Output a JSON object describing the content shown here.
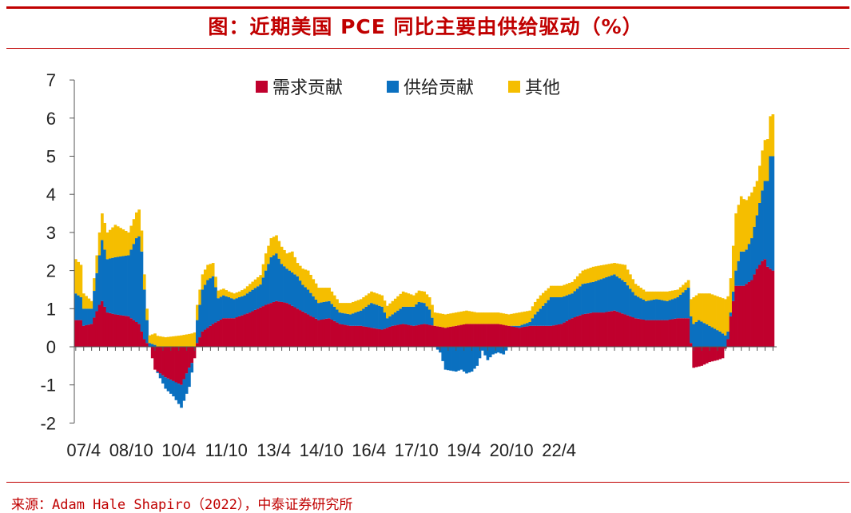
{
  "title": "图：近期美国 PCE 同比主要由供给驱动（%）",
  "source": "来源：Adam Hale Shapiro（2022），中泰证券研究所",
  "colors": {
    "demand": "#C0002D",
    "supply": "#0A70C0",
    "other": "#F5BE00",
    "accent": "#C00000"
  },
  "chart_data": {
    "type": "bar",
    "stacked": true,
    "title": "图：近期美国 PCE 同比主要由供给驱动（%）",
    "xlabel": "",
    "ylabel": "",
    "ylim": [
      -2,
      7
    ],
    "yticks": [
      -2,
      -1,
      0,
      1,
      2,
      3,
      4,
      5,
      6,
      7
    ],
    "xtick_labels": [
      "07/4",
      "08/10",
      "10/4",
      "11/10",
      "13/4",
      "14/10",
      "16/4",
      "17/10",
      "19/4",
      "20/10",
      "22/4"
    ],
    "grid": false,
    "legend": {
      "position": "top",
      "entries": [
        "需求贡献",
        "供给贡献",
        "其他"
      ]
    },
    "x_start": "2007-01",
    "frequency": "monthly",
    "anchors": {
      "demand": [
        [
          0,
          0.7
        ],
        [
          2,
          0.7
        ],
        [
          3,
          0.55
        ],
        [
          6,
          0.6
        ],
        [
          9,
          1.1
        ],
        [
          10,
          1.2
        ],
        [
          12,
          0.9
        ],
        [
          15,
          0.85
        ],
        [
          20,
          0.8
        ],
        [
          24,
          0.6
        ],
        [
          26,
          0.2
        ],
        [
          28,
          0.0
        ],
        [
          30,
          -0.6
        ],
        [
          34,
          -0.8
        ],
        [
          37,
          -0.9
        ],
        [
          40,
          -1.0
        ],
        [
          43,
          -0.55
        ],
        [
          45,
          -0.3
        ],
        [
          46,
          0.1
        ],
        [
          48,
          0.4
        ],
        [
          52,
          0.6
        ],
        [
          56,
          0.75
        ],
        [
          60,
          0.75
        ],
        [
          66,
          0.9
        ],
        [
          72,
          1.1
        ],
        [
          76,
          1.2
        ],
        [
          80,
          1.15
        ],
        [
          84,
          1.0
        ],
        [
          88,
          0.85
        ],
        [
          92,
          0.7
        ],
        [
          96,
          0.75
        ],
        [
          100,
          0.6
        ],
        [
          104,
          0.55
        ],
        [
          108,
          0.55
        ],
        [
          112,
          0.5
        ],
        [
          116,
          0.45
        ],
        [
          120,
          0.55
        ],
        [
          124,
          0.6
        ],
        [
          128,
          0.55
        ],
        [
          132,
          0.6
        ],
        [
          136,
          0.55
        ],
        [
          140,
          0.5
        ],
        [
          144,
          0.55
        ],
        [
          148,
          0.6
        ],
        [
          152,
          0.6
        ],
        [
          156,
          0.6
        ],
        [
          160,
          0.6
        ],
        [
          164,
          0.55
        ],
        [
          168,
          0.5
        ],
        [
          172,
          0.55
        ],
        [
          176,
          0.55
        ],
        [
          180,
          0.55
        ],
        [
          184,
          0.6
        ],
        [
          188,
          0.75
        ],
        [
          192,
          0.85
        ],
        [
          196,
          0.9
        ],
        [
          200,
          0.9
        ],
        [
          204,
          0.95
        ],
        [
          208,
          0.85
        ],
        [
          212,
          0.75
        ],
        [
          216,
          0.7
        ],
        [
          220,
          0.7
        ],
        [
          224,
          0.7
        ],
        [
          228,
          0.75
        ],
        [
          230,
          0.75
        ],
        [
          232,
          0.75
        ],
        [
          234,
          -0.55
        ],
        [
          237,
          -0.5
        ],
        [
          240,
          -0.4
        ],
        [
          243,
          -0.35
        ],
        [
          245,
          -0.3
        ],
        [
          247,
          0.2
        ],
        [
          248,
          0.8
        ],
        [
          250,
          1.6
        ],
        [
          253,
          1.6
        ],
        [
          256,
          1.75
        ],
        [
          258,
          2.05
        ],
        [
          260,
          2.25
        ],
        [
          261,
          2.3
        ],
        [
          262,
          2.1
        ],
        [
          264,
          2.0
        ]
      ],
      "supply": [
        [
          0,
          0.7
        ],
        [
          2,
          0.6
        ],
        [
          3,
          0.45
        ],
        [
          6,
          0.4
        ],
        [
          9,
          1.3
        ],
        [
          10,
          1.6
        ],
        [
          12,
          1.4
        ],
        [
          15,
          1.5
        ],
        [
          20,
          1.6
        ],
        [
          23,
          2.2
        ],
        [
          24,
          2.3
        ],
        [
          25,
          2.1
        ],
        [
          26,
          1.3
        ],
        [
          27,
          0.6
        ],
        [
          28,
          0.1
        ],
        [
          30,
          0.05
        ],
        [
          34,
          -0.3
        ],
        [
          37,
          -0.4
        ],
        [
          40,
          -0.6
        ],
        [
          43,
          -0.5
        ],
        [
          45,
          0.0
        ],
        [
          46,
          0.6
        ],
        [
          48,
          1.1
        ],
        [
          50,
          1.25
        ],
        [
          52,
          1.25
        ],
        [
          54,
          0.6
        ],
        [
          56,
          0.6
        ],
        [
          60,
          0.5
        ],
        [
          64,
          0.5
        ],
        [
          66,
          0.55
        ],
        [
          70,
          0.6
        ],
        [
          74,
          1.2
        ],
        [
          76,
          1.25
        ],
        [
          78,
          1.0
        ],
        [
          80,
          0.9
        ],
        [
          84,
          0.85
        ],
        [
          86,
          0.7
        ],
        [
          88,
          0.65
        ],
        [
          92,
          0.45
        ],
        [
          96,
          0.45
        ],
        [
          100,
          0.3
        ],
        [
          104,
          0.3
        ],
        [
          108,
          0.4
        ],
        [
          112,
          0.65
        ],
        [
          116,
          0.6
        ],
        [
          118,
          0.25
        ],
        [
          120,
          0.3
        ],
        [
          124,
          0.45
        ],
        [
          128,
          0.5
        ],
        [
          130,
          0.6
        ],
        [
          132,
          0.55
        ],
        [
          134,
          0.4
        ],
        [
          136,
          0.0
        ],
        [
          138,
          -0.15
        ],
        [
          140,
          -0.6
        ],
        [
          144,
          -0.65
        ],
        [
          146,
          -0.6
        ],
        [
          148,
          -0.7
        ],
        [
          150,
          -0.65
        ],
        [
          152,
          -0.5
        ],
        [
          154,
          -0.1
        ],
        [
          156,
          -0.35
        ],
        [
          158,
          -0.2
        ],
        [
          160,
          -0.15
        ],
        [
          162,
          -0.2
        ],
        [
          164,
          0.0
        ],
        [
          168,
          0.05
        ],
        [
          172,
          0.1
        ],
        [
          174,
          0.3
        ],
        [
          176,
          0.45
        ],
        [
          180,
          0.75
        ],
        [
          184,
          0.7
        ],
        [
          188,
          0.65
        ],
        [
          192,
          0.8
        ],
        [
          196,
          0.8
        ],
        [
          200,
          0.9
        ],
        [
          204,
          0.95
        ],
        [
          208,
          0.85
        ],
        [
          212,
          0.6
        ],
        [
          216,
          0.5
        ],
        [
          220,
          0.55
        ],
        [
          224,
          0.5
        ],
        [
          228,
          0.55
        ],
        [
          232,
          0.8
        ],
        [
          234,
          0.6
        ],
        [
          236,
          0.7
        ],
        [
          240,
          0.55
        ],
        [
          244,
          0.4
        ],
        [
          246,
          0.3
        ],
        [
          248,
          0.1
        ],
        [
          250,
          0.4
        ],
        [
          252,
          0.9
        ],
        [
          254,
          0.9
        ],
        [
          256,
          1.1
        ],
        [
          258,
          1.4
        ],
        [
          260,
          1.85
        ],
        [
          262,
          2.25
        ],
        [
          263,
          2.95
        ],
        [
          264,
          3.0
        ]
      ],
      "other": [
        [
          0,
          0.9
        ],
        [
          2,
          0.85
        ],
        [
          3,
          0.4
        ],
        [
          6,
          0.2
        ],
        [
          9,
          0.6
        ],
        [
          10,
          0.7
        ],
        [
          12,
          0.7
        ],
        [
          15,
          0.85
        ],
        [
          20,
          0.6
        ],
        [
          24,
          0.7
        ],
        [
          26,
          0.4
        ],
        [
          28,
          0.2
        ],
        [
          30,
          0.3
        ],
        [
          34,
          0.25
        ],
        [
          40,
          0.3
        ],
        [
          44,
          0.35
        ],
        [
          46,
          0.4
        ],
        [
          48,
          0.4
        ],
        [
          50,
          0.4
        ],
        [
          52,
          0.35
        ],
        [
          54,
          0.2
        ],
        [
          58,
          0.15
        ],
        [
          62,
          0.15
        ],
        [
          66,
          0.2
        ],
        [
          70,
          0.25
        ],
        [
          72,
          0.45
        ],
        [
          74,
          0.5
        ],
        [
          78,
          0.45
        ],
        [
          80,
          0.4
        ],
        [
          82,
          0.55
        ],
        [
          84,
          0.35
        ],
        [
          88,
          0.5
        ],
        [
          92,
          0.4
        ],
        [
          96,
          0.35
        ],
        [
          100,
          0.25
        ],
        [
          104,
          0.3
        ],
        [
          108,
          0.3
        ],
        [
          112,
          0.3
        ],
        [
          116,
          0.3
        ],
        [
          120,
          0.35
        ],
        [
          124,
          0.4
        ],
        [
          128,
          0.3
        ],
        [
          132,
          0.3
        ],
        [
          136,
          0.35
        ],
        [
          140,
          0.35
        ],
        [
          144,
          0.35
        ],
        [
          148,
          0.35
        ],
        [
          152,
          0.3
        ],
        [
          156,
          0.3
        ],
        [
          160,
          0.3
        ],
        [
          164,
          0.3
        ],
        [
          168,
          0.35
        ],
        [
          172,
          0.3
        ],
        [
          176,
          0.35
        ],
        [
          180,
          0.3
        ],
        [
          184,
          0.3
        ],
        [
          188,
          0.3
        ],
        [
          192,
          0.35
        ],
        [
          196,
          0.4
        ],
        [
          200,
          0.35
        ],
        [
          204,
          0.3
        ],
        [
          208,
          0.45
        ],
        [
          212,
          0.3
        ],
        [
          216,
          0.25
        ],
        [
          220,
          0.2
        ],
        [
          224,
          0.25
        ],
        [
          228,
          0.2
        ],
        [
          232,
          0.2
        ],
        [
          234,
          0.7
        ],
        [
          236,
          0.7
        ],
        [
          240,
          0.85
        ],
        [
          244,
          0.9
        ],
        [
          246,
          0.95
        ],
        [
          248,
          0.9
        ],
        [
          250,
          1.5
        ],
        [
          252,
          1.45
        ],
        [
          254,
          1.3
        ],
        [
          256,
          1.2
        ],
        [
          258,
          0.9
        ],
        [
          260,
          1.05
        ],
        [
          262,
          1.1
        ],
        [
          263,
          1.05
        ],
        [
          264,
          1.1
        ]
      ]
    }
  }
}
